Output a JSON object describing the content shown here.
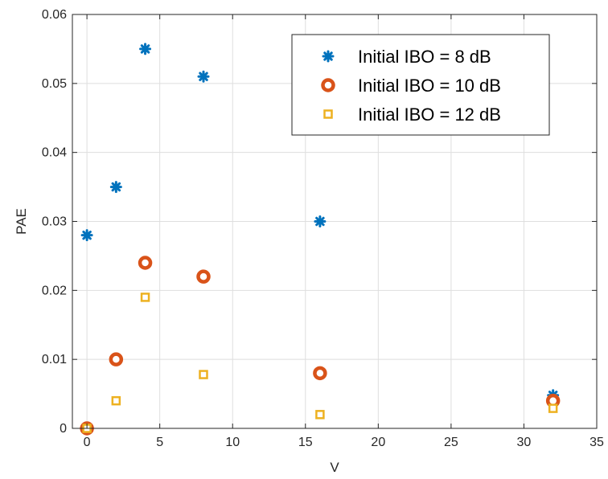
{
  "chart_data": {
    "type": "scatter",
    "title": "",
    "xlabel": "V",
    "ylabel": "PAE",
    "xlim": [
      -1,
      35
    ],
    "ylim": [
      0,
      0.06
    ],
    "xticks": [
      "0",
      "5",
      "10",
      "15",
      "20",
      "25",
      "30",
      "35"
    ],
    "yticks": [
      "0",
      "0.01",
      "0.02",
      "0.03",
      "0.04",
      "0.05",
      "0.06"
    ],
    "grid": true,
    "legend_position": "top-right",
    "series": [
      {
        "name": "Initial IBO = 8 dB",
        "marker": "asterisk",
        "color": "#0072BD",
        "x": [
          0,
          2,
          4,
          8,
          16,
          32
        ],
        "y": [
          0.028,
          0.035,
          0.055,
          0.051,
          0.03,
          0.0048
        ]
      },
      {
        "name": "Initial IBO = 10 dB",
        "marker": "circle",
        "color": "#D95319",
        "x": [
          0,
          2,
          4,
          8,
          16,
          32
        ],
        "y": [
          0,
          0.01,
          0.024,
          0.022,
          0.008,
          0.004
        ]
      },
      {
        "name": "Initial IBO = 12 dB",
        "marker": "square",
        "color": "#EDB120",
        "x": [
          0,
          2,
          4,
          8,
          16,
          32
        ],
        "y": [
          0,
          0.004,
          0.019,
          0.0078,
          0.002,
          0.0029
        ]
      }
    ]
  }
}
